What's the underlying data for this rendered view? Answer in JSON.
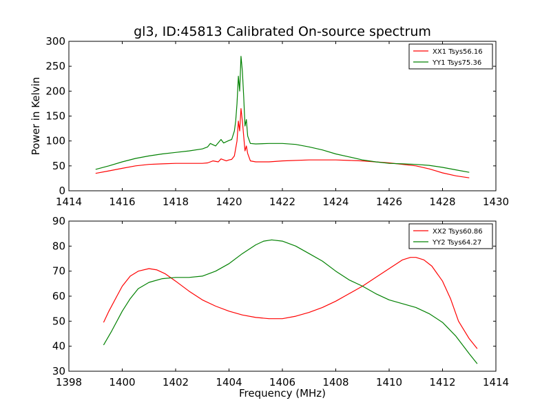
{
  "figure": {
    "title": "gl3, ID:45813 Calibrated On-source spectrum"
  },
  "chart_data": [
    {
      "type": "line",
      "title": "gl3, ID:45813 Calibrated On-source spectrum",
      "xlabel": "",
      "ylabel": "Power in Kelvin",
      "xlim": [
        1414,
        1430
      ],
      "ylim": [
        0,
        300
      ],
      "xticks": [
        1414,
        1416,
        1418,
        1420,
        1422,
        1424,
        1426,
        1428,
        1430
      ],
      "yticks": [
        0,
        50,
        100,
        150,
        200,
        250,
        300
      ],
      "grid": false,
      "legend": "top-right",
      "series": [
        {
          "name": "XX1 Tsys56.16",
          "color": "#ff0000",
          "points": [
            [
              1415.0,
              35
            ],
            [
              1415.5,
              40
            ],
            [
              1416.0,
              45
            ],
            [
              1416.5,
              50
            ],
            [
              1417.0,
              53
            ],
            [
              1417.5,
              54
            ],
            [
              1418.0,
              55
            ],
            [
              1418.5,
              55
            ],
            [
              1419.0,
              55
            ],
            [
              1419.2,
              56
            ],
            [
              1419.4,
              60
            ],
            [
              1419.6,
              58
            ],
            [
              1419.7,
              64
            ],
            [
              1419.9,
              60
            ],
            [
              1420.0,
              62
            ],
            [
              1420.1,
              63
            ],
            [
              1420.2,
              70
            ],
            [
              1420.3,
              100
            ],
            [
              1420.35,
              140
            ],
            [
              1420.4,
              120
            ],
            [
              1420.45,
              165
            ],
            [
              1420.5,
              140
            ],
            [
              1420.55,
              110
            ],
            [
              1420.6,
              80
            ],
            [
              1420.65,
              90
            ],
            [
              1420.7,
              75
            ],
            [
              1420.8,
              60
            ],
            [
              1421.0,
              58
            ],
            [
              1421.5,
              58
            ],
            [
              1422.0,
              60
            ],
            [
              1423.0,
              62
            ],
            [
              1424.0,
              62
            ],
            [
              1425.0,
              60
            ],
            [
              1426.0,
              56
            ],
            [
              1427.0,
              50
            ],
            [
              1427.5,
              44
            ],
            [
              1428.0,
              36
            ],
            [
              1428.5,
              30
            ],
            [
              1429.0,
              26
            ]
          ]
        },
        {
          "name": "YY1 Tsys75.36",
          "color": "#008000",
          "points": [
            [
              1415.0,
              43
            ],
            [
              1415.5,
              50
            ],
            [
              1416.0,
              58
            ],
            [
              1416.5,
              65
            ],
            [
              1417.0,
              70
            ],
            [
              1417.5,
              74
            ],
            [
              1418.0,
              77
            ],
            [
              1418.5,
              80
            ],
            [
              1419.0,
              84
            ],
            [
              1419.2,
              88
            ],
            [
              1419.3,
              95
            ],
            [
              1419.5,
              90
            ],
            [
              1419.7,
              103
            ],
            [
              1419.8,
              96
            ],
            [
              1420.0,
              101
            ],
            [
              1420.1,
              103
            ],
            [
              1420.2,
              120
            ],
            [
              1420.25,
              140
            ],
            [
              1420.3,
              175
            ],
            [
              1420.35,
              230
            ],
            [
              1420.4,
              200
            ],
            [
              1420.45,
              270
            ],
            [
              1420.5,
              240
            ],
            [
              1420.55,
              190
            ],
            [
              1420.6,
              130
            ],
            [
              1420.65,
              143
            ],
            [
              1420.7,
              110
            ],
            [
              1420.8,
              95
            ],
            [
              1421.0,
              94
            ],
            [
              1421.5,
              95
            ],
            [
              1422.0,
              95
            ],
            [
              1422.5,
              93
            ],
            [
              1423.0,
              88
            ],
            [
              1423.5,
              82
            ],
            [
              1424.0,
              74
            ],
            [
              1424.5,
              68
            ],
            [
              1425.0,
              62
            ],
            [
              1425.5,
              58
            ],
            [
              1426.0,
              55
            ],
            [
              1426.5,
              54
            ],
            [
              1427.0,
              53
            ],
            [
              1427.5,
              51
            ],
            [
              1428.0,
              47
            ],
            [
              1428.5,
              42
            ],
            [
              1429.0,
              37
            ]
          ]
        }
      ]
    },
    {
      "type": "line",
      "title": "",
      "xlabel": "Frequency (MHz)",
      "ylabel": "",
      "xlim": [
        1398,
        1414
      ],
      "ylim": [
        30,
        90
      ],
      "xticks": [
        1398,
        1400,
        1402,
        1404,
        1406,
        1408,
        1410,
        1412,
        1414
      ],
      "yticks": [
        30,
        40,
        50,
        60,
        70,
        80,
        90
      ],
      "grid": false,
      "legend": "top-right",
      "series": [
        {
          "name": "XX2 Tsys60.86",
          "color": "#ff0000",
          "points": [
            [
              1399.3,
              49.5
            ],
            [
              1399.5,
              54
            ],
            [
              1399.8,
              60
            ],
            [
              1400.0,
              64
            ],
            [
              1400.3,
              68
            ],
            [
              1400.6,
              70
            ],
            [
              1401.0,
              71
            ],
            [
              1401.3,
              70.5
            ],
            [
              1401.6,
              69
            ],
            [
              1402.0,
              66
            ],
            [
              1402.5,
              62
            ],
            [
              1403.0,
              58.5
            ],
            [
              1403.5,
              56
            ],
            [
              1404.0,
              54
            ],
            [
              1404.5,
              52.5
            ],
            [
              1405.0,
              51.5
            ],
            [
              1405.5,
              51
            ],
            [
              1406.0,
              51
            ],
            [
              1406.5,
              52
            ],
            [
              1407.0,
              53.5
            ],
            [
              1407.5,
              55.5
            ],
            [
              1408.0,
              58
            ],
            [
              1408.5,
              61
            ],
            [
              1409.0,
              64
            ],
            [
              1409.5,
              67.5
            ],
            [
              1410.0,
              71
            ],
            [
              1410.5,
              74.5
            ],
            [
              1410.8,
              75.5
            ],
            [
              1411.0,
              75.5
            ],
            [
              1411.3,
              74.5
            ],
            [
              1411.6,
              72
            ],
            [
              1412.0,
              66
            ],
            [
              1412.3,
              59
            ],
            [
              1412.6,
              50
            ],
            [
              1413.0,
              43
            ],
            [
              1413.3,
              39
            ]
          ]
        },
        {
          "name": "YY2 Tsys64.27",
          "color": "#008000",
          "points": [
            [
              1399.3,
              40.5
            ],
            [
              1399.6,
              46
            ],
            [
              1400.0,
              54
            ],
            [
              1400.3,
              59
            ],
            [
              1400.6,
              63
            ],
            [
              1401.0,
              65.5
            ],
            [
              1401.5,
              67
            ],
            [
              1402.0,
              67.5
            ],
            [
              1402.5,
              67.5
            ],
            [
              1403.0,
              68
            ],
            [
              1403.5,
              70
            ],
            [
              1404.0,
              73
            ],
            [
              1404.5,
              77
            ],
            [
              1405.0,
              80.5
            ],
            [
              1405.3,
              82
            ],
            [
              1405.6,
              82.5
            ],
            [
              1406.0,
              82
            ],
            [
              1406.5,
              80
            ],
            [
              1407.0,
              77
            ],
            [
              1407.5,
              74
            ],
            [
              1408.0,
              70
            ],
            [
              1408.5,
              66.5
            ],
            [
              1409.0,
              64
            ],
            [
              1409.5,
              61
            ],
            [
              1410.0,
              58.5
            ],
            [
              1410.5,
              57
            ],
            [
              1411.0,
              55.5
            ],
            [
              1411.5,
              53
            ],
            [
              1412.0,
              49.5
            ],
            [
              1412.5,
              44
            ],
            [
              1413.0,
              37
            ],
            [
              1413.3,
              33
            ]
          ]
        }
      ]
    }
  ]
}
